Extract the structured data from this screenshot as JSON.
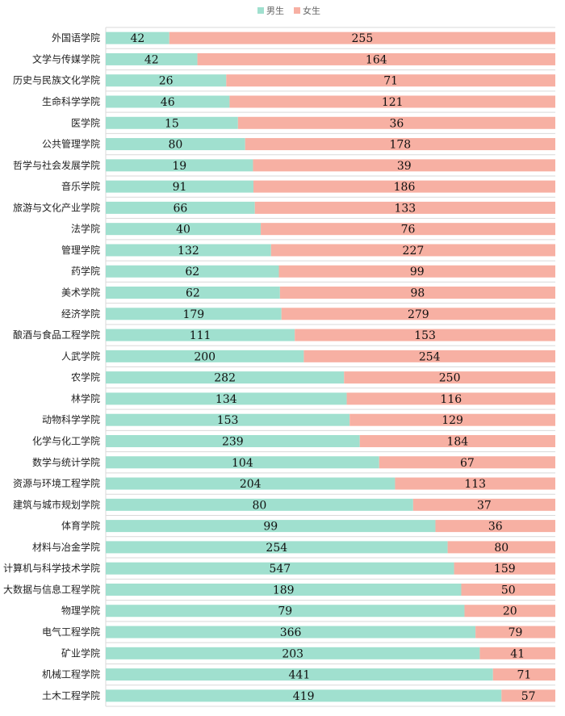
{
  "chart_data": {
    "type": "bar",
    "orientation": "horizontal",
    "stacking": "percent",
    "title": "",
    "xlabel": "",
    "ylabel": "",
    "legend_position": "top-center",
    "colors": {
      "male": "#a0e0cf",
      "female": "#f7b0a3",
      "grid": "#d9d9d9"
    },
    "categories": [
      "外国语学院",
      "文学与传媒学院",
      "历史与民族文化学院",
      "生命科学学院",
      "医学院",
      "公共管理学院",
      "哲学与社会发展学院",
      "音乐学院",
      "旅游与文化产业学院",
      "法学院",
      "管理学院",
      "药学院",
      "美术学院",
      "经济学院",
      "酿酒与食品工程学院",
      "人武学院",
      "农学院",
      "林学院",
      "动物科学学院",
      "化学与化工学院",
      "数学与统计学院",
      "资源与环境工程学院",
      "建筑与城市规划学院",
      "体育学院",
      "材料与冶金学院",
      "计算机与科学技术学院",
      "大数据与信息工程学院",
      "物理学院",
      "电气工程学院",
      "矿业学院",
      "机械工程学院",
      "土木工程学院"
    ],
    "series": [
      {
        "name": "男生",
        "values": [
          42,
          42,
          26,
          46,
          15,
          80,
          19,
          91,
          66,
          40,
          132,
          62,
          62,
          179,
          111,
          200,
          282,
          134,
          153,
          239,
          104,
          204,
          80,
          99,
          254,
          547,
          189,
          79,
          366,
          203,
          441,
          419
        ]
      },
      {
        "name": "女生",
        "values": [
          255,
          164,
          71,
          121,
          36,
          178,
          39,
          186,
          133,
          76,
          227,
          99,
          98,
          279,
          153,
          254,
          250,
          116,
          129,
          184,
          67,
          113,
          37,
          36,
          80,
          159,
          50,
          20,
          79,
          41,
          71,
          57
        ]
      }
    ]
  }
}
